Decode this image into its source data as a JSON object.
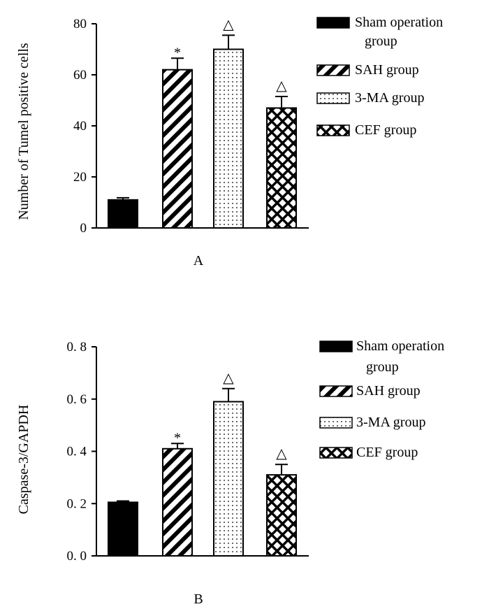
{
  "colors": {
    "ink": "#000000",
    "background": "#ffffff"
  },
  "chart_data": [
    {
      "type": "bar",
      "panel_label": "A",
      "ylabel": "Number of Tumel positive cells",
      "ylim": [
        0,
        80
      ],
      "yticks": [
        0,
        20,
        40,
        60,
        80
      ],
      "ytick_labels": [
        "0",
        "20",
        "40",
        "60",
        "80"
      ],
      "categories": [
        "Sham operation group",
        "SAH group",
        "3-MA group",
        "CEF group"
      ],
      "values": [
        11,
        62,
        70,
        47
      ],
      "errors": [
        0.8,
        4.5,
        5.5,
        4.5
      ],
      "patterns": [
        "solid",
        "diagonal",
        "dots",
        "crosshatch"
      ],
      "annotations": [
        "",
        "*",
        "△",
        "△"
      ],
      "legend": {
        "position": "right",
        "entries": [
          {
            "lines": [
              "Sham operation",
              "group"
            ],
            "pattern": "solid"
          },
          {
            "lines": [
              "SAH group"
            ],
            "pattern": "diagonal"
          },
          {
            "lines": [
              "3-MA group"
            ],
            "pattern": "dots"
          },
          {
            "lines": [
              "CEF group"
            ],
            "pattern": "crosshatch"
          }
        ]
      }
    },
    {
      "type": "bar",
      "panel_label": "B",
      "ylabel": "Caspase-3/GAPDH",
      "ylim": [
        0,
        0.8
      ],
      "yticks": [
        0,
        0.2,
        0.4,
        0.6,
        0.8
      ],
      "ytick_labels": [
        "0. 0",
        "0. 2",
        "0. 4",
        "0. 6",
        "0. 8"
      ],
      "categories": [
        "Sham operation group",
        "SAH group",
        "3-MA group",
        "CEF group"
      ],
      "values": [
        0.205,
        0.41,
        0.59,
        0.31
      ],
      "errors": [
        0.005,
        0.02,
        0.05,
        0.04
      ],
      "patterns": [
        "solid",
        "diagonal",
        "dots",
        "crosshatch"
      ],
      "annotations": [
        "",
        "*",
        "△",
        "△"
      ],
      "legend": {
        "position": "right",
        "entries": [
          {
            "lines": [
              "Sham operation",
              "group"
            ],
            "pattern": "solid"
          },
          {
            "lines": [
              "SAH group"
            ],
            "pattern": "diagonal"
          },
          {
            "lines": [
              "3-MA group"
            ],
            "pattern": "dots"
          },
          {
            "lines": [
              "CEF group"
            ],
            "pattern": "crosshatch"
          }
        ]
      }
    }
  ]
}
